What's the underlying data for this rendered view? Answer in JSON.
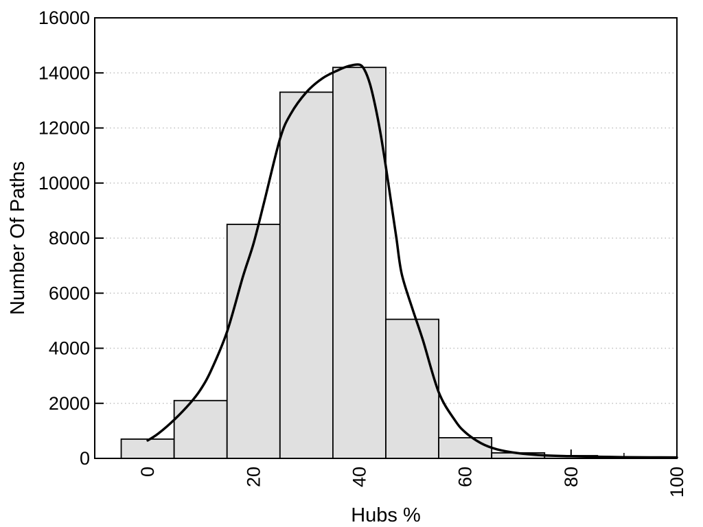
{
  "figure": {
    "background": "#ffffff"
  },
  "chart_data": {
    "type": "bar",
    "subtype": "histogram_with_density_curve",
    "title": "",
    "xlabel": "Hubs %",
    "ylabel": "Number Of Paths",
    "xlim": [
      -10,
      100
    ],
    "ylim": [
      0,
      16000
    ],
    "x_major_ticks": [
      0,
      20,
      40,
      60,
      80,
      100
    ],
    "x_major_tick_labels": [
      "0",
      "20",
      "40",
      "60",
      "80",
      "100"
    ],
    "x_minor_ticks": [
      10,
      30,
      50,
      70,
      90
    ],
    "y_ticks": [
      0,
      2000,
      4000,
      6000,
      8000,
      10000,
      12000,
      14000,
      16000
    ],
    "y_tick_labels": [
      "0",
      "2000",
      "4000",
      "6000",
      "8000",
      "10000",
      "12000",
      "14000",
      "16000"
    ],
    "x_tick_label_rotation_deg": -90,
    "grid": {
      "horizontal": true,
      "vertical": false,
      "style": "dotted",
      "color": "#bfbfbf"
    },
    "legend": null,
    "colors": {
      "bar_fill": "#e0e0e0",
      "bar_edge": "#000000",
      "curve": "#000000",
      "axis": "#000000",
      "text": "#000000",
      "background": "#ffffff"
    },
    "histogram": {
      "bin_width": 10,
      "bin_centers": [
        0,
        10,
        20,
        30,
        40,
        50,
        60,
        70,
        80
      ],
      "counts": [
        700,
        2100,
        8500,
        13300,
        14200,
        5050,
        750,
        200,
        100
      ]
    },
    "series": [
      {
        "name": "density-curve",
        "type": "line",
        "points": [
          [
            0,
            650
          ],
          [
            2,
            900
          ],
          [
            5,
            1400
          ],
          [
            8,
            2000
          ],
          [
            10,
            2500
          ],
          [
            12,
            3200
          ],
          [
            15,
            4600
          ],
          [
            18,
            6600
          ],
          [
            20,
            7800
          ],
          [
            22,
            9300
          ],
          [
            25,
            11600
          ],
          [
            27,
            12500
          ],
          [
            30,
            13300
          ],
          [
            33,
            13800
          ],
          [
            36,
            14100
          ],
          [
            38,
            14250
          ],
          [
            40,
            14300
          ],
          [
            41,
            14100
          ],
          [
            42,
            13600
          ],
          [
            43,
            12800
          ],
          [
            44,
            11800
          ],
          [
            45,
            10600
          ],
          [
            46,
            9300
          ],
          [
            47,
            8000
          ],
          [
            48,
            6700
          ],
          [
            50,
            5450
          ],
          [
            52,
            4300
          ],
          [
            55,
            2400
          ],
          [
            58,
            1400
          ],
          [
            60,
            950
          ],
          [
            63,
            550
          ],
          [
            66,
            330
          ],
          [
            70,
            190
          ],
          [
            75,
            110
          ],
          [
            80,
            80
          ],
          [
            85,
            60
          ],
          [
            90,
            45
          ],
          [
            95,
            38
          ],
          [
            100,
            35
          ]
        ]
      }
    ]
  }
}
